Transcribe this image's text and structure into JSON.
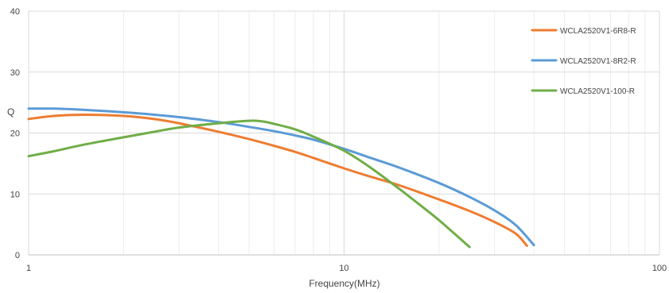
{
  "chart_data": {
    "type": "line",
    "title": "",
    "xlabel": "Frequency(MHz)",
    "ylabel": "Q",
    "x_scale": "log",
    "xlim": [
      1,
      100
    ],
    "ylim": [
      0,
      40
    ],
    "x_ticks": [
      1,
      10,
      100
    ],
    "x_tick_labels": [
      "1",
      "10",
      "100"
    ],
    "y_ticks": [
      0,
      10,
      20,
      30,
      40
    ],
    "y_tick_labels": [
      "0",
      "10",
      "20",
      "30",
      "40"
    ],
    "grid": true,
    "legend_position": "right",
    "series": [
      {
        "name": "WCLA2520V1-6R8-R",
        "color": "#ED7D31",
        "x": [
          1,
          1.2,
          1.5,
          2,
          2.5,
          3,
          4,
          5,
          6,
          7,
          8,
          10,
          12,
          15,
          20,
          25,
          30,
          35,
          38
        ],
        "y": [
          22.3,
          22.8,
          23.0,
          22.8,
          22.3,
          21.6,
          20.2,
          19.0,
          17.9,
          16.9,
          15.9,
          14.2,
          12.9,
          11.4,
          9.1,
          7.2,
          5.4,
          3.5,
          1.5
        ]
      },
      {
        "name": "WCLA2520V1-8R2-R",
        "color": "#5B9BD5",
        "x": [
          1,
          1.2,
          1.5,
          2,
          2.5,
          3,
          4,
          5,
          6,
          7,
          8,
          10,
          12,
          15,
          20,
          25,
          30,
          35,
          40
        ],
        "y": [
          24.0,
          24.0,
          23.8,
          23.4,
          23.0,
          22.6,
          21.8,
          21.0,
          20.3,
          19.6,
          18.9,
          17.4,
          16.0,
          14.3,
          11.8,
          9.5,
          7.3,
          4.9,
          1.6
        ]
      },
      {
        "name": "WCLA2520V1-100-R",
        "color": "#70AD47",
        "x": [
          1,
          1.2,
          1.5,
          2,
          2.5,
          3,
          4,
          5,
          5.5,
          6,
          7,
          8,
          10,
          12,
          15,
          18,
          20,
          25
        ],
        "y": [
          16.2,
          17.0,
          18.1,
          19.3,
          20.2,
          20.9,
          21.6,
          22.0,
          21.9,
          21.5,
          20.6,
          19.4,
          17.1,
          14.5,
          10.8,
          7.6,
          5.7,
          1.3
        ]
      }
    ]
  }
}
